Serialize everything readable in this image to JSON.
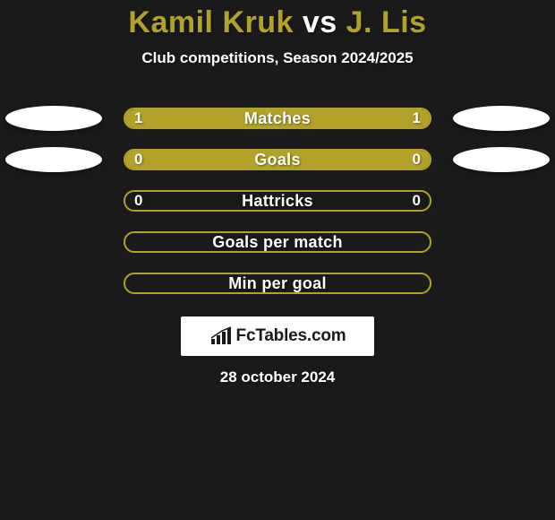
{
  "background_color": "#1a1a1a",
  "player_color": "#b2a229",
  "title": {
    "p1": "Kamil Kruk",
    "vs": "vs",
    "p2": "J. Lis"
  },
  "subtitle": "Club competitions, Season 2024/2025",
  "rows": [
    {
      "label": "Matches",
      "left_value": "1",
      "right_value": "1",
      "left_fill_pct": 50,
      "right_fill_pct": 50,
      "fill_color": "#b2a229",
      "show_left_ellipse": true,
      "show_right_ellipse": true
    },
    {
      "label": "Goals",
      "left_value": "0",
      "right_value": "0",
      "left_fill_pct": 50,
      "right_fill_pct": 50,
      "fill_color": "#b2a229",
      "show_left_ellipse": true,
      "show_right_ellipse": true
    },
    {
      "label": "Hattricks",
      "left_value": "0",
      "right_value": "0",
      "left_fill_pct": 0,
      "right_fill_pct": 0,
      "fill_color": "#b2a229",
      "show_left_ellipse": false,
      "show_right_ellipse": false
    },
    {
      "label": "Goals per match",
      "left_value": "",
      "right_value": "",
      "left_fill_pct": 0,
      "right_fill_pct": 0,
      "fill_color": "#b2a229",
      "show_left_ellipse": false,
      "show_right_ellipse": false
    },
    {
      "label": "Min per goal",
      "left_value": "",
      "right_value": "",
      "left_fill_pct": 0,
      "right_fill_pct": 0,
      "fill_color": "#b2a229",
      "show_left_ellipse": false,
      "show_right_ellipse": false
    }
  ],
  "logo_text": "FcTables.com",
  "date": "28 october 2024"
}
